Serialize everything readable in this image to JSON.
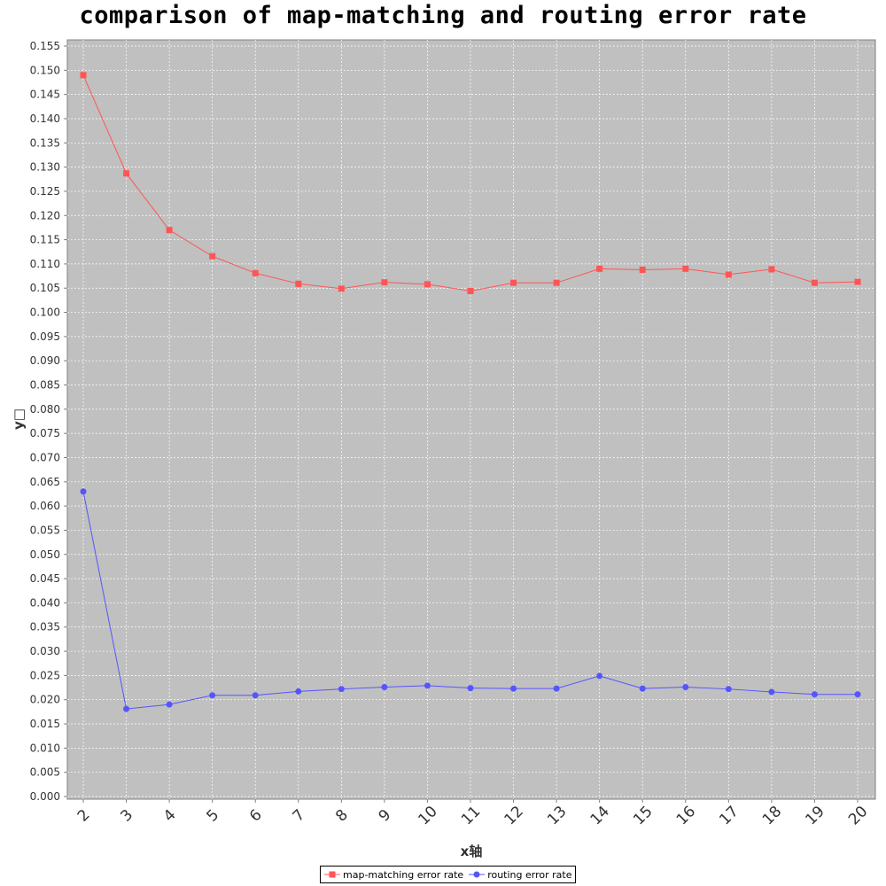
{
  "chart_data": {
    "type": "line",
    "title": "comparison of map-matching and routing error rate",
    "xlabel": "x轴",
    "ylabel": "y□",
    "x": [
      2,
      3,
      4,
      5,
      6,
      7,
      8,
      9,
      10,
      11,
      12,
      13,
      14,
      15,
      16,
      17,
      18,
      19,
      20
    ],
    "ylim": [
      0,
      0.155
    ],
    "ytick_step": 0.005,
    "grid": true,
    "legend_position": "bottom",
    "series": [
      {
        "name": "map-matching error rate",
        "color": "#ff5555",
        "marker": "square",
        "values": [
          0.149,
          0.1287,
          0.117,
          0.1116,
          0.1081,
          0.1059,
          0.1049,
          0.1062,
          0.1058,
          0.1044,
          0.1061,
          0.1061,
          0.109,
          0.1088,
          0.109,
          0.1078,
          0.1089,
          0.1061,
          0.1063
        ]
      },
      {
        "name": "routing error rate",
        "color": "#5555ff",
        "marker": "circle",
        "values": [
          0.063,
          0.0181,
          0.019,
          0.0209,
          0.0209,
          0.0217,
          0.0222,
          0.0226,
          0.0229,
          0.0224,
          0.0223,
          0.0223,
          0.0249,
          0.0223,
          0.0226,
          0.0222,
          0.0216,
          0.0211,
          0.0211
        ]
      }
    ]
  }
}
